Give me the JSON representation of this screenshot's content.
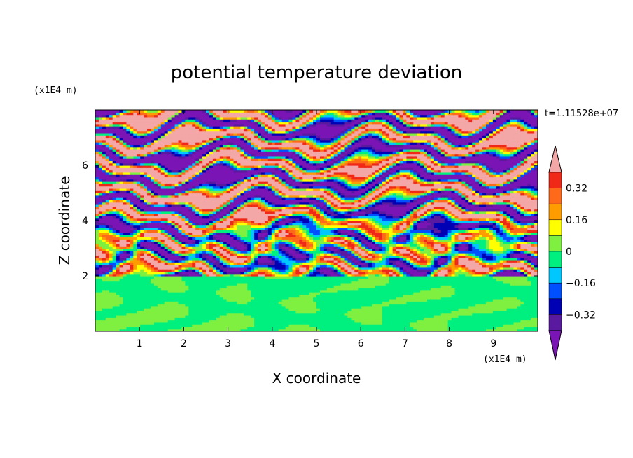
{
  "chart_data": {
    "type": "heatmap",
    "title": "potential temperature deviation",
    "xlabel": "X coordinate",
    "ylabel": "Z coordinate",
    "x_unit": "(x1E4 m)",
    "y_unit": "(x1E4 m)",
    "time_annotation": "t=1.11528e+07",
    "xlim": [
      0,
      10
    ],
    "ylim": [
      0,
      8
    ],
    "xticks": [
      "1",
      "2",
      "3",
      "4",
      "5",
      "6",
      "7",
      "8",
      "9"
    ],
    "yticks": [
      "2",
      "4",
      "6"
    ],
    "colorbar": {
      "tick_labels": [
        "0.32",
        "0.16",
        "0",
        "-0.16",
        "-0.32"
      ],
      "levels_top_to_bottom": [
        {
          "lower": 0.4,
          "upper": null,
          "color": "#f4a7a7"
        },
        {
          "lower": 0.32,
          "upper": 0.4,
          "color": "#f02818"
        },
        {
          "lower": 0.24,
          "upper": 0.32,
          "color": "#ff6a1a"
        },
        {
          "lower": 0.16,
          "upper": 0.24,
          "color": "#ff9c00"
        },
        {
          "lower": 0.08,
          "upper": 0.16,
          "color": "#ffff00"
        },
        {
          "lower": 0.0,
          "upper": 0.08,
          "color": "#80f040"
        },
        {
          "lower": -0.08,
          "upper": 0.0,
          "color": "#00f080"
        },
        {
          "lower": -0.16,
          "upper": -0.08,
          "color": "#00c8ff"
        },
        {
          "lower": -0.24,
          "upper": -0.16,
          "color": "#0050ff"
        },
        {
          "lower": -0.32,
          "upper": -0.24,
          "color": "#0000b4"
        },
        {
          "lower": -0.4,
          "upper": -0.32,
          "color": "#5a1aa0"
        },
        {
          "lower": null,
          "upper": -0.4,
          "color": "#7a14b4"
        }
      ]
    },
    "field_structure": {
      "lower_layer_z_range": [
        0,
        2
      ],
      "lower_layer_dominant_values": [
        -0.04,
        0.04
      ],
      "upper_layer_z_range": [
        2,
        8
      ],
      "upper_layer_pattern": "alternating horizontal bands of positive and negative deviation, mixed turbulence near z=2 to z=4"
    }
  }
}
